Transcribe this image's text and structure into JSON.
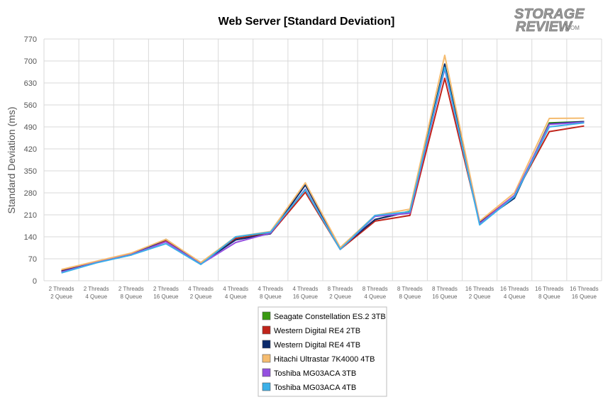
{
  "chart_data": {
    "type": "line",
    "title": "Web Server [Standard Deviation]",
    "xlabel": "",
    "ylabel": "Standard Deviation (ms)",
    "ylim": [
      0,
      770
    ],
    "yticks": [
      0,
      70,
      140,
      210,
      280,
      350,
      420,
      490,
      560,
      630,
      700,
      770
    ],
    "categories": [
      [
        "2 Threads",
        "2 Queue"
      ],
      [
        "2 Threads",
        "4 Queue"
      ],
      [
        "2 Threads",
        "8 Queue"
      ],
      [
        "2 Threads",
        "16 Queue"
      ],
      [
        "4 Threads",
        "2 Queue"
      ],
      [
        "4 Threads",
        "4 Queue"
      ],
      [
        "4 Threads",
        "8 Queue"
      ],
      [
        "4 Threads",
        "16 Queue"
      ],
      [
        "8 Threads",
        "2 Queue"
      ],
      [
        "8 Threads",
        "4 Queue"
      ],
      [
        "8 Threads",
        "8 Queue"
      ],
      [
        "8 Threads",
        "16 Queue"
      ],
      [
        "16 Threads",
        "2 Queue"
      ],
      [
        "16 Threads",
        "4 Queue"
      ],
      [
        "16 Threads",
        "8 Queue"
      ],
      [
        "16 Threads",
        "16 Queue"
      ]
    ],
    "grid": true,
    "legend_position": "bottom",
    "series": [
      {
        "name": "Seagate Constellation ES.2 3TB",
        "color": "#3a9a12",
        "values": [
          30,
          58,
          85,
          130,
          58,
          135,
          152,
          305,
          103,
          195,
          222,
          690,
          188,
          265,
          503,
          507
        ]
      },
      {
        "name": "Western Digital RE4 2TB",
        "color": "#c0241b",
        "values": [
          32,
          60,
          85,
          127,
          55,
          135,
          150,
          282,
          100,
          190,
          208,
          645,
          185,
          272,
          475,
          493
        ]
      },
      {
        "name": "Western Digital RE4 4TB",
        "color": "#0b2a6b",
        "values": [
          30,
          58,
          82,
          132,
          55,
          130,
          150,
          305,
          103,
          195,
          220,
          690,
          185,
          263,
          500,
          507
        ]
      },
      {
        "name": "Hitachi Ultrastar 7K4000 4TB",
        "color": "#f5bc70",
        "values": [
          36,
          62,
          88,
          132,
          58,
          140,
          157,
          312,
          106,
          208,
          228,
          718,
          190,
          280,
          517,
          518
        ]
      },
      {
        "name": "Toshiba MG03ACA 3TB",
        "color": "#9450e0",
        "values": [
          28,
          58,
          83,
          124,
          53,
          122,
          152,
          292,
          100,
          205,
          215,
          675,
          182,
          272,
          498,
          505
        ]
      },
      {
        "name": "Toshiba MG03ACA 4TB",
        "color": "#3bb0e8",
        "values": [
          25,
          57,
          82,
          118,
          52,
          140,
          155,
          290,
          100,
          208,
          220,
          680,
          178,
          268,
          490,
          503
        ]
      }
    ]
  },
  "logo": {
    "line1": "STORAGE",
    "line2": "REVIEW",
    "suffix": ".COM"
  }
}
